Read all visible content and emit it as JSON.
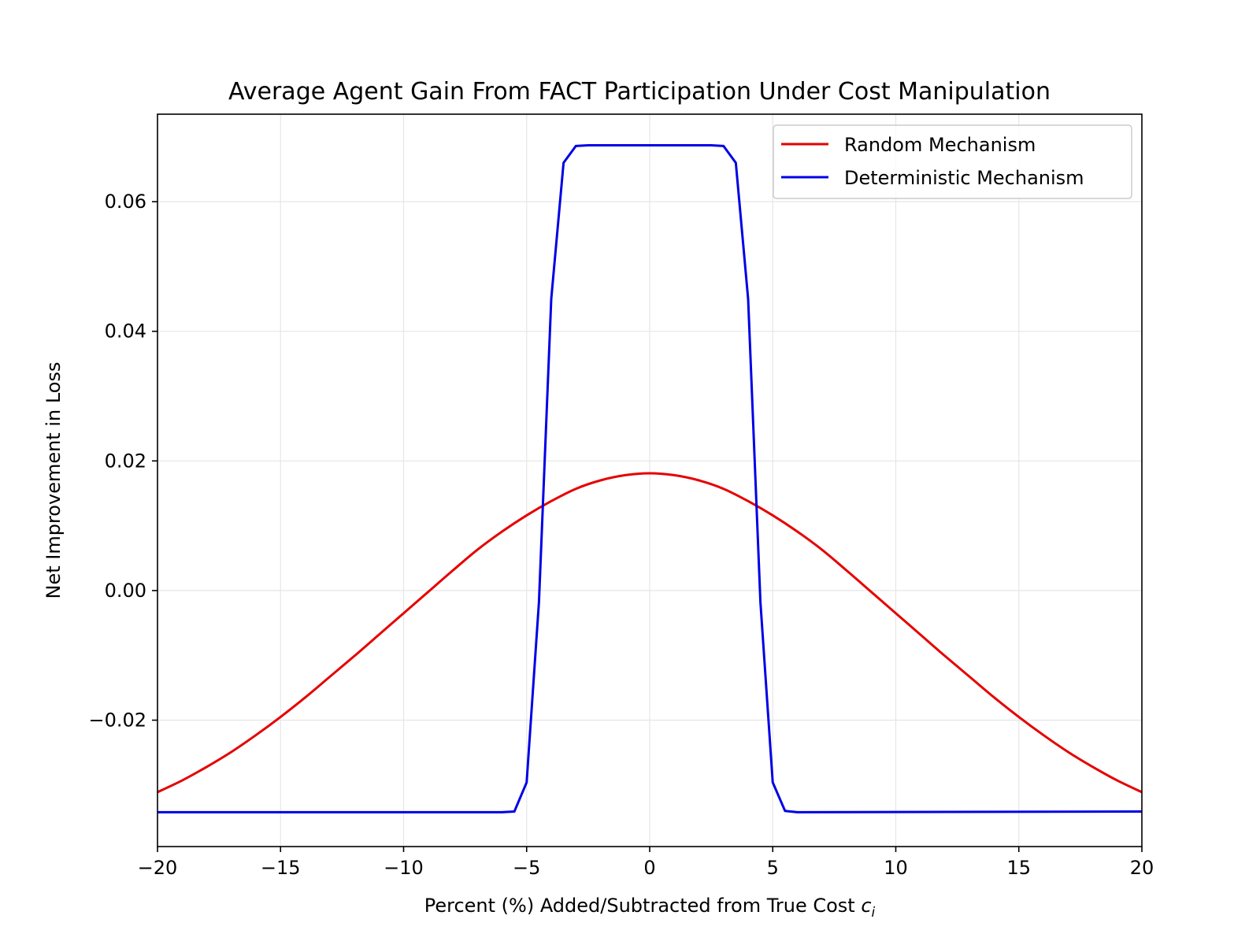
{
  "chart_data": {
    "type": "line",
    "title": "Average Agent Gain From FACT Participation Under Cost Manipulation",
    "xlabel_main": "Percent (%) Added/Subtracted from True Cost ",
    "xlabel_var": "c",
    "xlabel_sub": "i",
    "ylabel": "Net Improvement in Loss",
    "xlim": [
      -20,
      20
    ],
    "ylim": [
      -0.0395,
      0.0735
    ],
    "xticks": [
      -20,
      -15,
      -10,
      -5,
      0,
      5,
      10,
      15,
      20
    ],
    "xtick_labels": [
      "−20",
      "−15",
      "−10",
      "−5",
      "0",
      "5",
      "10",
      "15",
      "20"
    ],
    "yticks": [
      -0.02,
      0.0,
      0.02,
      0.04,
      0.06
    ],
    "ytick_labels": [
      "−0.02",
      "0.00",
      "0.02",
      "0.04",
      "0.06"
    ],
    "grid": true,
    "legend_position": "top-right",
    "series": [
      {
        "name": "Random Mechanism",
        "color": "#e60000",
        "x": [
          -20,
          -19,
          -18,
          -17,
          -16,
          -15,
          -14,
          -13,
          -12,
          -11,
          -10,
          -9,
          -8,
          -7,
          -6,
          -5,
          -4,
          -3,
          -2,
          -1,
          0,
          1,
          2,
          3,
          4,
          5,
          6,
          7,
          8,
          9,
          10,
          11,
          12,
          13,
          14,
          15,
          16,
          17,
          18,
          19,
          20
        ],
        "y": [
          -0.0311,
          -0.0293,
          -0.0272,
          -0.0249,
          -0.0223,
          -0.0195,
          -0.0165,
          -0.0133,
          -0.0101,
          -0.0068,
          -0.0035,
          -0.0002,
          0.0031,
          0.0063,
          0.0091,
          0.0116,
          0.0138,
          0.0157,
          0.017,
          0.0178,
          0.0181,
          0.0178,
          0.017,
          0.0157,
          0.0138,
          0.0116,
          0.0091,
          0.0063,
          0.0031,
          -0.0002,
          -0.0035,
          -0.0068,
          -0.0101,
          -0.0133,
          -0.0165,
          -0.0195,
          -0.0223,
          -0.0249,
          -0.0272,
          -0.0293,
          -0.0311
        ]
      },
      {
        "name": "Deterministic Mechanism",
        "color": "#0000e6",
        "x": [
          -20,
          -6,
          -5.5,
          -5,
          -4.5,
          -4,
          -3.5,
          -3,
          -2.5,
          0,
          2.5,
          3,
          3.5,
          4,
          4.5,
          5,
          5.5,
          6,
          20
        ],
        "y": [
          -0.0342,
          -0.0342,
          -0.0341,
          -0.0296,
          -0.0018,
          0.045,
          0.066,
          0.0686,
          0.0687,
          0.0687,
          0.0687,
          0.0686,
          0.066,
          0.045,
          -0.0018,
          -0.0296,
          -0.034,
          -0.0342,
          -0.0341
        ]
      }
    ]
  }
}
